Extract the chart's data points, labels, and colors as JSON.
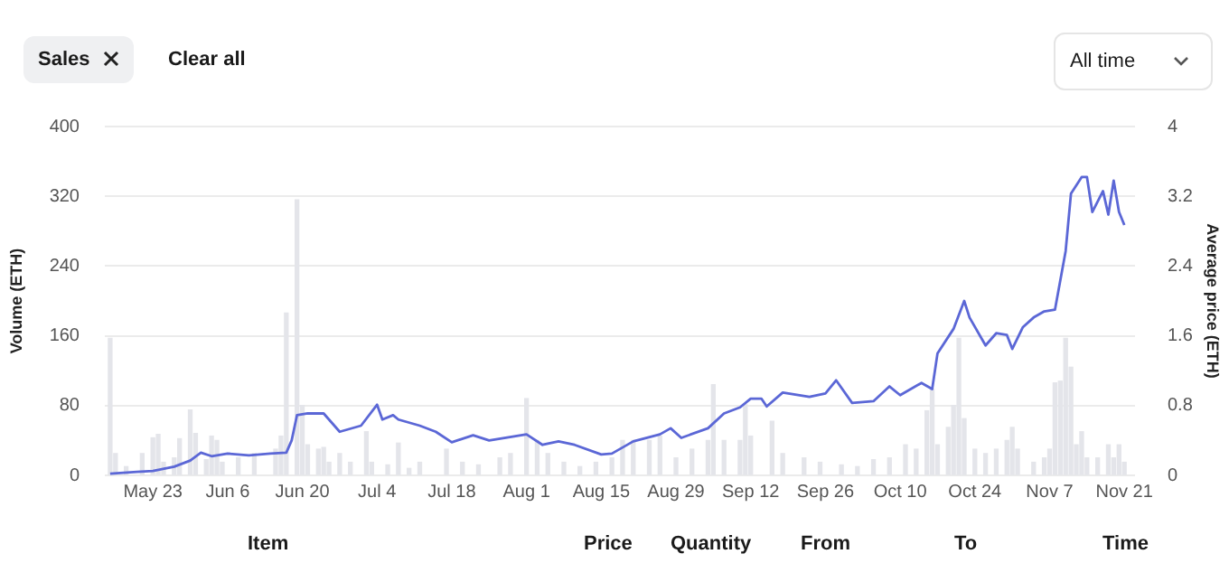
{
  "chart_data": {
    "type": "bar",
    "ylabel": "Volume (ETH)",
    "y2label": "Average price (ETH)",
    "xlim": [
      "--05-14",
      "--11-23"
    ],
    "xticks": [
      {
        "value": "--05-23",
        "label": "May 23"
      },
      {
        "value": "--06-06",
        "label": "Jun 6"
      },
      {
        "value": "--06-20",
        "label": "Jun 20"
      },
      {
        "value": "--07-04",
        "label": "Jul 4"
      },
      {
        "value": "--07-18",
        "label": "Jul 18"
      },
      {
        "value": "--08-01",
        "label": "Aug 1"
      },
      {
        "value": "--08-15",
        "label": "Aug 15"
      },
      {
        "value": "--08-29",
        "label": "Aug 29"
      },
      {
        "value": "--09-12",
        "label": "Sep 12"
      },
      {
        "value": "--09-26",
        "label": "Sep 26"
      },
      {
        "value": "--10-10",
        "label": "Oct 10"
      },
      {
        "value": "--10-24",
        "label": "Oct 24"
      },
      {
        "value": "--11-07",
        "label": "Nov 7"
      },
      {
        "value": "--11-21",
        "label": "Nov 21"
      }
    ],
    "ylim": [
      0,
      400
    ],
    "yticks": [
      0,
      80,
      160,
      240,
      320,
      400
    ],
    "y2lim": [
      0,
      4
    ],
    "y2ticks": [
      0,
      {
        "value": 0.8,
        "label": "0.8"
      },
      {
        "value": 1.6,
        "label": "1.6"
      },
      {
        "value": 2.4,
        "label": "2.4"
      },
      {
        "value": 3.2,
        "label": "3.2"
      },
      4
    ],
    "grid": "y",
    "legend": false,
    "series": [
      {
        "color": "#e4e5ea",
        "x": [
          "--05-15",
          "--05-16",
          "--05-18",
          "--05-21",
          "--05-23",
          "--05-24",
          "--05-25",
          "--05-27",
          "--05-28",
          "--05-30",
          "--05-31",
          "--06-02",
          "--06-03",
          "--06-04",
          "--06-05",
          "--06-08",
          "--06-11",
          "--06-15",
          "--06-16",
          "--06-17",
          "--06-19",
          "--06-20",
          "--06-21",
          "--06-23",
          "--06-24",
          "--06-25",
          "--06-27",
          "--06-29",
          "--07-02",
          "--07-03",
          "--07-06",
          "--07-08",
          "--07-10",
          "--07-12",
          "--07-17",
          "--07-20",
          "--07-23",
          "--07-27",
          "--07-29",
          "--08-01",
          "--08-03",
          "--08-05",
          "--08-08",
          "--08-11",
          "--08-14",
          "--08-17",
          "--08-19",
          "--08-21",
          "--08-24",
          "--08-26",
          "--08-29",
          "--09-01",
          "--09-04",
          "--09-05",
          "--09-07",
          "--09-10",
          "--09-11",
          "--09-12",
          "--09-16",
          "--09-18",
          "--09-22",
          "--09-25",
          "--09-29",
          "--10-02",
          "--10-05",
          "--10-08",
          "--10-11",
          "--10-13",
          "--10-15",
          "--10-16",
          "--10-17",
          "--10-19",
          "--10-20",
          "--10-21",
          "--10-22",
          "--10-24",
          "--10-26",
          "--10-28",
          "--10-30",
          "--10-31",
          "--11-01",
          "--11-04",
          "--11-06",
          "--11-07",
          "--11-08",
          "--11-09",
          "--11-10",
          "--11-11",
          "--11-12",
          "--11-13",
          "--11-14",
          "--11-16",
          "--11-18",
          "--11-19",
          "--11-20",
          "--11-21"
        ],
        "values": [
          157,
          25,
          10,
          25,
          43,
          47,
          15,
          20,
          42,
          75,
          48,
          18,
          45,
          40,
          15,
          20,
          25,
          30,
          45,
          186,
          316,
          80,
          35,
          30,
          32,
          15,
          25,
          15,
          50,
          15,
          12,
          37,
          8,
          15,
          30,
          15,
          12,
          20,
          25,
          88,
          40,
          25,
          15,
          10,
          15,
          20,
          40,
          40,
          40,
          45,
          20,
          30,
          40,
          104,
          40,
          40,
          81,
          45,
          62,
          25,
          20,
          15,
          12,
          10,
          18,
          20,
          35,
          30,
          74,
          99,
          35,
          55,
          80,
          157,
          65,
          30,
          25,
          30,
          40,
          55,
          30,
          15,
          20,
          30,
          106,
          108,
          157,
          124,
          35,
          50,
          20,
          20,
          35,
          20,
          35,
          15
        ]
      },
      {
        "type": "line",
        "axis": "y2",
        "color": "#5b67d6",
        "x": [
          "--05-15",
          "--05-20",
          "--05-23",
          "--05-27",
          "--05-30",
          "--06-01",
          "--06-03",
          "--06-06",
          "--06-10",
          "--06-14",
          "--06-17",
          "--06-18",
          "--06-19",
          "--06-21",
          "--06-24",
          "--06-27",
          "--07-01",
          "--07-04",
          "--07-05",
          "--07-07",
          "--07-08",
          "--07-12",
          "--07-15",
          "--07-18",
          "--07-22",
          "--07-25",
          "--08-01",
          "--08-04",
          "--08-07",
          "--08-10",
          "--08-15",
          "--08-17",
          "--08-21",
          "--08-26",
          "--08-28",
          "--08-30",
          "--09-04",
          "--09-07",
          "--09-10",
          "--09-12",
          "--09-14",
          "--09-15",
          "--09-18",
          "--09-23",
          "--09-26",
          "--09-28",
          "--10-01",
          "--10-05",
          "--10-08",
          "--10-10",
          "--10-14",
          "--10-16",
          "--10-17",
          "--10-20",
          "--10-22",
          "--10-23",
          "--10-26",
          "--10-28",
          "--10-30",
          "--10-31",
          "--11-02",
          "--11-04",
          "--11-06",
          "--11-08",
          "--11-10",
          "--11-11",
          "--11-13",
          "--11-14",
          "--11-15",
          "--11-17",
          "--11-18",
          "--11-19",
          "--11-20",
          "--11-21"
        ],
        "values": [
          0.02,
          0.04,
          0.05,
          0.1,
          0.17,
          0.26,
          0.22,
          0.25,
          0.23,
          0.25,
          0.26,
          0.4,
          0.69,
          0.71,
          0.71,
          0.5,
          0.57,
          0.81,
          0.64,
          0.69,
          0.64,
          0.57,
          0.5,
          0.38,
          0.46,
          0.4,
          0.47,
          0.35,
          0.39,
          0.35,
          0.24,
          0.25,
          0.39,
          0.47,
          0.54,
          0.43,
          0.54,
          0.71,
          0.78,
          0.88,
          0.88,
          0.79,
          0.95,
          0.9,
          0.94,
          1.09,
          0.83,
          0.85,
          1.02,
          0.92,
          1.06,
          0.99,
          1.4,
          1.68,
          2.0,
          1.81,
          1.49,
          1.63,
          1.61,
          1.45,
          1.7,
          1.81,
          1.88,
          1.9,
          2.57,
          3.23,
          3.42,
          3.42,
          3.02,
          3.26,
          2.99,
          3.38,
          3.02,
          2.87
        ]
      }
    ],
    "annotations": [
      "Sales",
      "Clear all",
      "All time",
      "Item",
      "Price",
      "Quantity",
      "From",
      "To",
      "Time"
    ]
  }
}
